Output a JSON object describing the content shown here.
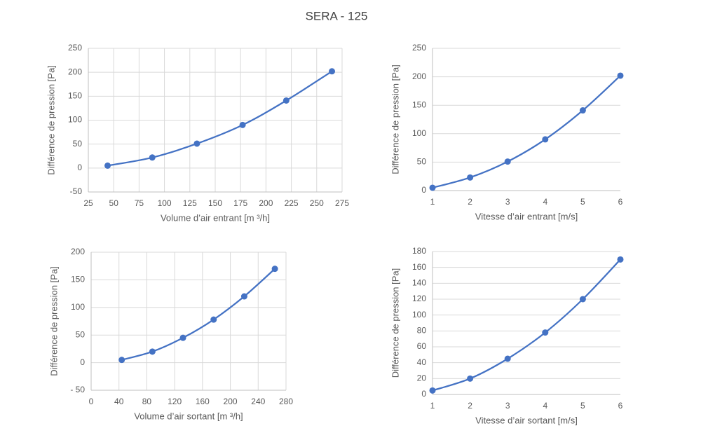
{
  "title": "SERA - 125",
  "chart_data": [
    {
      "type": "line",
      "x_label": "Volume d’air entrant [m ³/h]",
      "y_label": "Différence de pression [Pa]",
      "x": [
        44,
        88,
        132,
        177,
        220,
        265
      ],
      "values": [
        5,
        22,
        51,
        90,
        141,
        202
      ],
      "color": "#4472c4",
      "xlim": [
        25,
        275
      ],
      "xticks": [
        25,
        50,
        75,
        100,
        125,
        150,
        175,
        200,
        225,
        250,
        275
      ],
      "ylim": [
        -50,
        250
      ],
      "yticks": [
        -50,
        0,
        50,
        100,
        150,
        200,
        250
      ],
      "grid_x": true,
      "grid_y": true
    },
    {
      "type": "line",
      "x_label": "Vitesse d’air entrant [m/s]",
      "y_label": "Différence de pression [Pa]",
      "x": [
        1,
        2,
        3,
        4,
        5,
        6
      ],
      "values": [
        5,
        23,
        51,
        90,
        141,
        202
      ],
      "color": "#4472c4",
      "xlim": [
        1,
        6
      ],
      "xticks": [
        1,
        2,
        3,
        4,
        5,
        6
      ],
      "ylim": [
        0,
        250
      ],
      "yticks": [
        0,
        50,
        100,
        150,
        200,
        250
      ],
      "grid_x": false,
      "grid_y": true
    },
    {
      "type": "line",
      "x_label": "Volume d’air sortant [m ³/h]",
      "y_label": "Différence de pression [Pa]",
      "x": [
        44,
        88,
        132,
        176,
        220,
        264
      ],
      "values": [
        5,
        20,
        45,
        78,
        120,
        170
      ],
      "color": "#4472c4",
      "xlim": [
        0,
        280
      ],
      "xticks": [
        0,
        40,
        80,
        120,
        160,
        200,
        240,
        280
      ],
      "ylim": [
        -50,
        200
      ],
      "yticks": [
        {
          "value": -50,
          "label": "- 50"
        },
        0,
        50,
        100,
        150,
        200
      ],
      "grid_x": true,
      "grid_y": true
    },
    {
      "type": "line",
      "x_label": "Vitesse d’air sortant [m/s]",
      "y_label": "Différence de pression [Pa]",
      "x": [
        1,
        2,
        3,
        4,
        5,
        6
      ],
      "values": [
        5,
        20,
        45,
        78,
        120,
        170
      ],
      "color": "#4472c4",
      "xlim": [
        1,
        6
      ],
      "xticks": [
        1,
        2,
        3,
        4,
        5,
        6
      ],
      "ylim": [
        0,
        180
      ],
      "yticks": [
        0,
        20,
        40,
        60,
        80,
        100,
        120,
        140,
        160,
        180
      ],
      "grid_x": false,
      "grid_y": true
    }
  ]
}
